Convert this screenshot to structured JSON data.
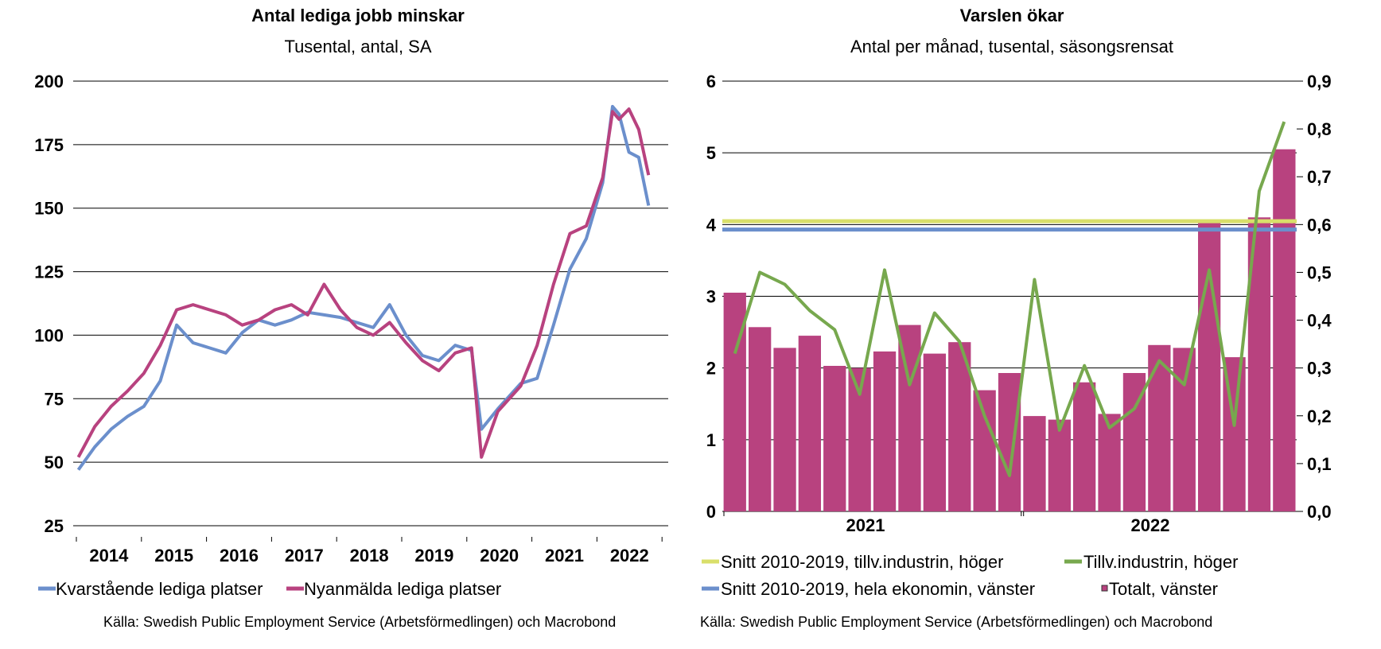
{
  "chart_data": [
    {
      "type": "line",
      "title": "Antal lediga jobb minskar",
      "subtitle": "Tusental, antal, SA",
      "ylim": [
        25,
        200
      ],
      "yticks": [
        25,
        50,
        75,
        100,
        125,
        150,
        175,
        200
      ],
      "xlim": [
        2013.8,
        2023.0
      ],
      "xticks_labels": [
        "2014",
        "2015",
        "2016",
        "2017",
        "2018",
        "2019",
        "2020",
        "2021",
        "2022"
      ],
      "grid": true,
      "legend_position": "bottom",
      "source": "Källa: Swedish Public Employment Service (Arbetsförmedlingen) och Macrobond",
      "series": [
        {
          "name": "Kvarstående lediga platser",
          "color": "#6b8fcc",
          "x": [
            2014.0,
            2014.25,
            2014.5,
            2014.75,
            2015.0,
            2015.25,
            2015.5,
            2015.75,
            2016.0,
            2016.25,
            2016.5,
            2016.75,
            2017.0,
            2017.25,
            2017.5,
            2017.75,
            2018.0,
            2018.25,
            2018.5,
            2018.75,
            2019.0,
            2019.25,
            2019.5,
            2019.75,
            2020.0,
            2020.15,
            2020.4,
            2020.75,
            2021.0,
            2021.25,
            2021.5,
            2021.75,
            2022.0,
            2022.15,
            2022.25,
            2022.4,
            2022.55,
            2022.7
          ],
          "y": [
            47,
            56,
            63,
            68,
            72,
            82,
            104,
            97,
            95,
            93,
            101,
            106,
            104,
            106,
            109,
            108,
            107,
            105,
            103,
            112,
            100,
            92,
            90,
            96,
            94,
            63,
            71,
            81,
            83,
            104,
            126,
            138,
            160,
            190,
            187,
            172,
            170,
            151
          ]
        },
        {
          "name": "Nyanmälda lediga platser",
          "color": "#b8427f",
          "x": [
            2014.0,
            2014.25,
            2014.5,
            2014.75,
            2015.0,
            2015.25,
            2015.5,
            2015.75,
            2016.0,
            2016.25,
            2016.5,
            2016.75,
            2017.0,
            2017.25,
            2017.5,
            2017.75,
            2018.0,
            2018.25,
            2018.5,
            2018.75,
            2019.0,
            2019.25,
            2019.5,
            2019.75,
            2020.0,
            2020.15,
            2020.4,
            2020.75,
            2021.0,
            2021.25,
            2021.5,
            2021.75,
            2022.0,
            2022.15,
            2022.25,
            2022.4,
            2022.55,
            2022.7
          ],
          "y": [
            52,
            64,
            72,
            78,
            85,
            96,
            110,
            112,
            110,
            108,
            104,
            106,
            110,
            112,
            108,
            120,
            110,
            103,
            100,
            105,
            97,
            90,
            86,
            93,
            95,
            52,
            70,
            80,
            96,
            120,
            140,
            143,
            162,
            188,
            185,
            189,
            181,
            163
          ]
        }
      ]
    },
    {
      "type": "bar",
      "title": "Varslen ökar",
      "subtitle": "Antal per månad, tusental, säsongsrensat",
      "ylim_left": [
        0,
        6
      ],
      "ylim_right": [
        0.0,
        0.9
      ],
      "yticks_left": [
        0,
        1,
        2,
        3,
        4,
        5,
        6
      ],
      "yticks_right": [
        "0,0",
        "0,1",
        "0,2",
        "0,3",
        "0,4",
        "0,5",
        "0,6",
        "0,7",
        "0,8",
        "0,9"
      ],
      "xticks_labels": [
        "2021",
        "2022"
      ],
      "grid": true,
      "legend_position": "bottom",
      "source": "Källa: Swedish Public Employment Service (Arbetsförmedlingen) och Macrobond",
      "bars": {
        "name": "Totalt, vänster",
        "axis": "left",
        "color": "#b8427f",
        "values": [
          3.05,
          2.57,
          2.28,
          2.45,
          2.03,
          2.0,
          2.23,
          2.6,
          2.2,
          2.36,
          1.69,
          1.93,
          1.33,
          1.28,
          1.8,
          1.36,
          1.93,
          2.32,
          2.28,
          4.07,
          2.15,
          4.1,
          5.05
        ]
      },
      "series": [
        {
          "name": "Tillv.industrin, höger",
          "axis": "right",
          "color": "#77a84e",
          "values": [
            0.33,
            0.5,
            0.475,
            0.42,
            0.38,
            0.245,
            0.505,
            0.265,
            0.415,
            0.355,
            0.2,
            0.075,
            0.485,
            0.17,
            0.305,
            0.175,
            0.215,
            0.315,
            0.265,
            0.505,
            0.18,
            0.67,
            0.815
          ]
        },
        {
          "name": "Snitt 2010-2019, tillv.industrin, höger",
          "axis": "right",
          "color": "#d9df6a",
          "value": 0.607
        },
        {
          "name": "Snitt 2010-2019, hela ekonomin, vänster",
          "axis": "left",
          "color": "#6b8fcc",
          "value": 3.93
        }
      ]
    }
  ]
}
